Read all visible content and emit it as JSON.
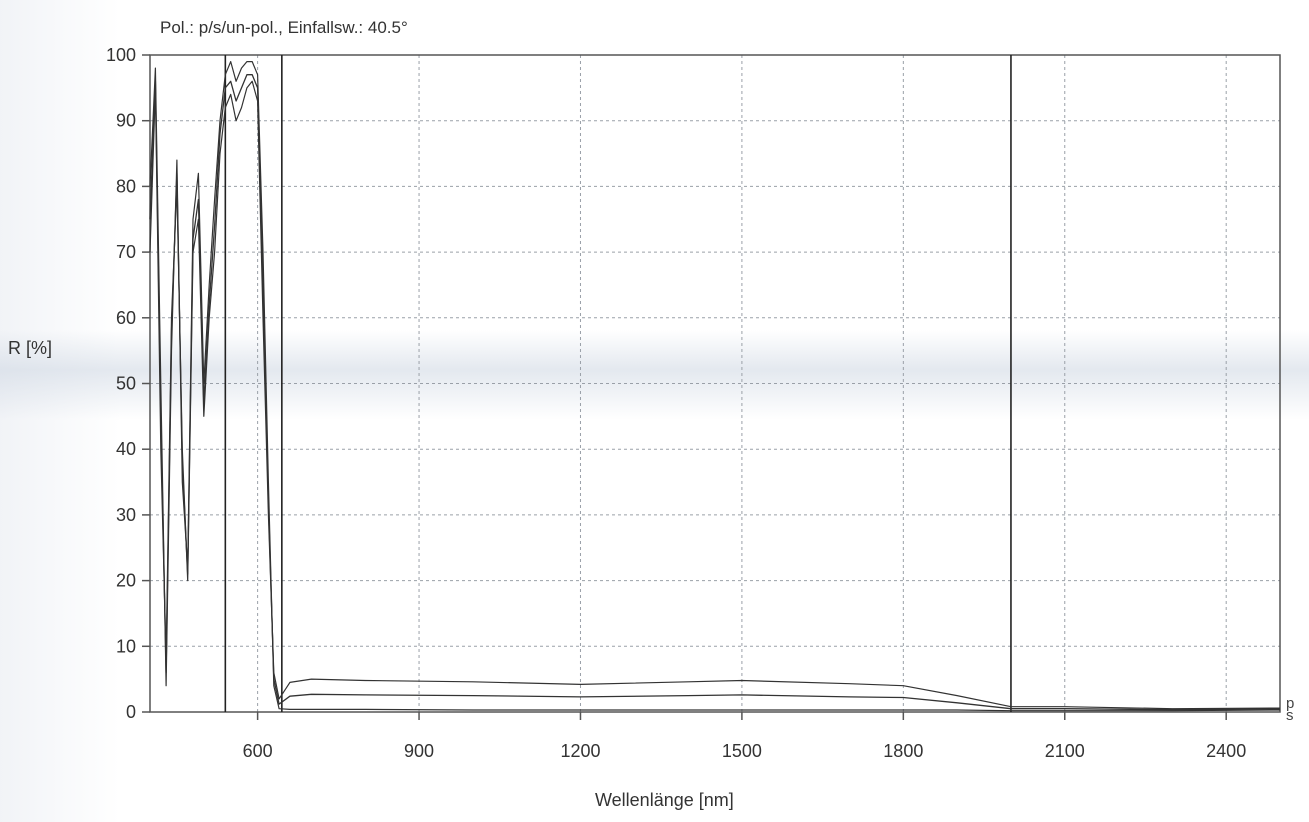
{
  "chart_data": {
    "type": "line",
    "title": "Pol.: p/s/un-pol., Einfallsw.: 40.5°",
    "xlabel": "Wellenlänge [nm]",
    "ylabel": "R [%]",
    "xlim": [
      400,
      2500
    ],
    "ylim": [
      0,
      100
    ],
    "xticks": [
      600,
      900,
      1200,
      1500,
      1800,
      2100,
      2400
    ],
    "yticks": [
      0,
      10,
      20,
      30,
      40,
      50,
      60,
      70,
      80,
      90,
      100
    ],
    "grid": true,
    "end_labels": [
      "p",
      "s"
    ],
    "colors": {
      "line": "#333333",
      "grid": "#9aa0a8",
      "frame": "#555555"
    },
    "series": [
      {
        "name": "p",
        "x": [
          400,
          410,
          420,
          430,
          440,
          450,
          460,
          470,
          480,
          490,
          500,
          510,
          520,
          530,
          540,
          550,
          560,
          570,
          580,
          590,
          600,
          610,
          620,
          630,
          640,
          660,
          700,
          800,
          1000,
          1200,
          1400,
          1500,
          1700,
          1800,
          1900,
          2000,
          2100,
          2300,
          2500
        ],
        "y": [
          70,
          95,
          40,
          8,
          60,
          80,
          40,
          20,
          70,
          75,
          45,
          60,
          70,
          85,
          92,
          94,
          90,
          92,
          95,
          96,
          93,
          60,
          30,
          6,
          2,
          4.5,
          5,
          4.8,
          4.6,
          4.2,
          4.6,
          4.8,
          4.3,
          4,
          2.5,
          0.8,
          0.8,
          0.5,
          0.6
        ]
      },
      {
        "name": "s",
        "x": [
          400,
          410,
          420,
          430,
          440,
          450,
          460,
          470,
          480,
          490,
          500,
          510,
          520,
          530,
          540,
          550,
          560,
          570,
          580,
          590,
          600,
          610,
          620,
          630,
          640,
          660,
          700,
          800,
          1000,
          1200,
          1400,
          1500,
          1700,
          1800,
          1900,
          2000,
          2100,
          2300,
          2500
        ],
        "y": [
          80,
          98,
          50,
          4,
          55,
          84,
          35,
          22,
          75,
          82,
          50,
          65,
          78,
          90,
          97,
          99,
          96,
          98,
          99,
          99,
          97,
          70,
          35,
          4,
          0.5,
          0.4,
          0.4,
          0.4,
          0.3,
          0.3,
          0.3,
          0.3,
          0.3,
          0.3,
          0.3,
          0.2,
          0.2,
          0.2,
          0.3
        ]
      },
      {
        "name": "un-pol.",
        "x": [
          400,
          410,
          420,
          430,
          440,
          450,
          460,
          470,
          480,
          490,
          500,
          510,
          520,
          530,
          540,
          550,
          560,
          570,
          580,
          590,
          600,
          610,
          620,
          630,
          640,
          660,
          700,
          800,
          1000,
          1200,
          1400,
          1500,
          1700,
          1800,
          1900,
          2000,
          2100,
          2300,
          2500
        ],
        "y": [
          75,
          96,
          45,
          6,
          58,
          82,
          38,
          21,
          72,
          78,
          47,
          62,
          74,
          88,
          95,
          96,
          93,
          95,
          97,
          97,
          95,
          65,
          32,
          5,
          1.2,
          2.4,
          2.7,
          2.6,
          2.5,
          2.3,
          2.5,
          2.6,
          2.3,
          2.2,
          1.4,
          0.5,
          0.5,
          0.35,
          0.45
        ]
      }
    ],
    "vertical_lines_x": [
      540,
      645,
      2000
    ]
  }
}
